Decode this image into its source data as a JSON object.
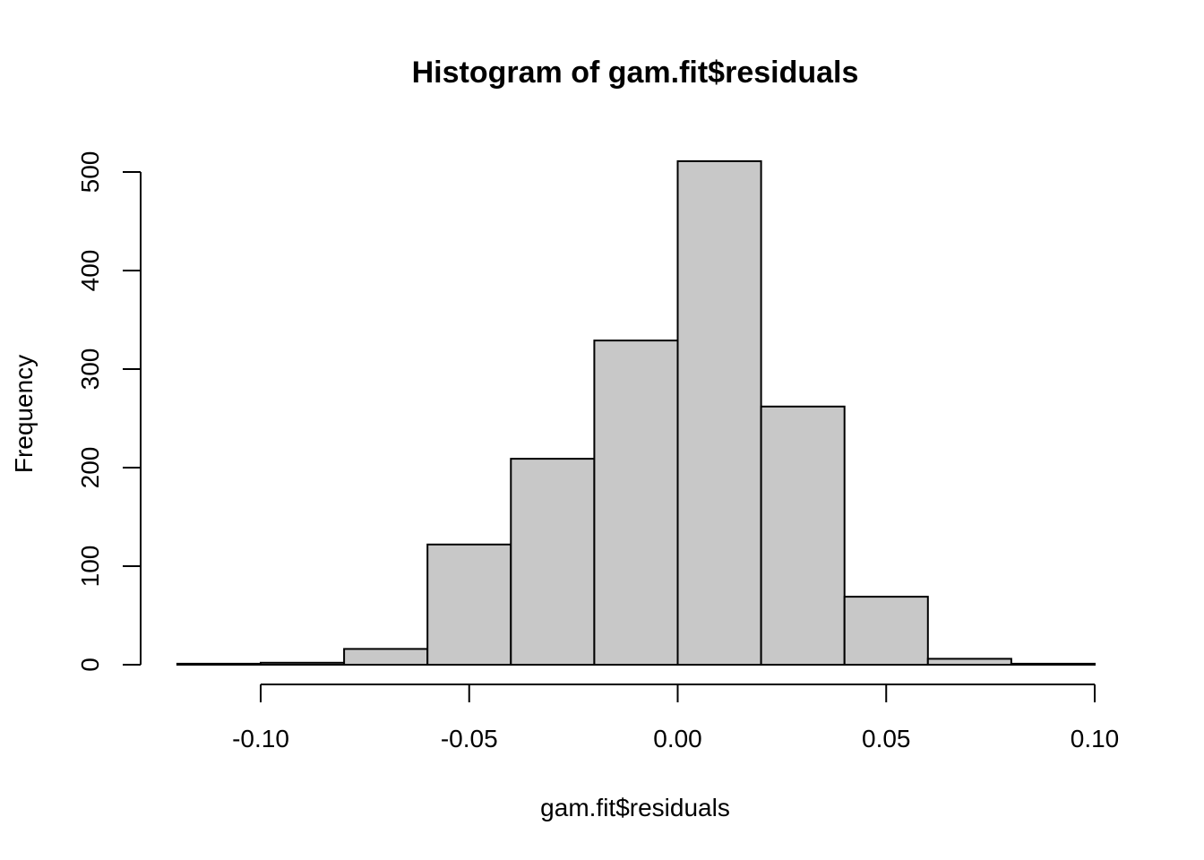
{
  "chart_data": {
    "type": "bar",
    "title": "Histogram of gam.fit$residuals",
    "xlabel": "gam.fit$residuals",
    "ylabel": "Frequency",
    "bin_edges": [
      -0.12,
      -0.1,
      -0.08,
      -0.06,
      -0.04,
      -0.02,
      0.0,
      0.02,
      0.04,
      0.06,
      0.08,
      0.1
    ],
    "values": [
      1,
      2,
      16,
      122,
      209,
      329,
      511,
      262,
      69,
      6,
      1
    ],
    "xlim": [
      -0.12,
      0.1
    ],
    "ylim": [
      0,
      511
    ],
    "x_ticks": [
      {
        "value": -0.1,
        "label": "-0.10"
      },
      {
        "value": -0.05,
        "label": "-0.05"
      },
      {
        "value": 0.0,
        "label": "0.00"
      },
      {
        "value": 0.05,
        "label": "0.05"
      },
      {
        "value": 0.1,
        "label": "0.10"
      }
    ],
    "y_ticks": [
      {
        "value": 0,
        "label": "0"
      },
      {
        "value": 100,
        "label": "100"
      },
      {
        "value": 200,
        "label": "200"
      },
      {
        "value": 300,
        "label": "300"
      },
      {
        "value": 400,
        "label": "400"
      },
      {
        "value": 500,
        "label": "500"
      }
    ],
    "bar_color": "#c8c8c8",
    "grid": false,
    "legend": "none"
  }
}
